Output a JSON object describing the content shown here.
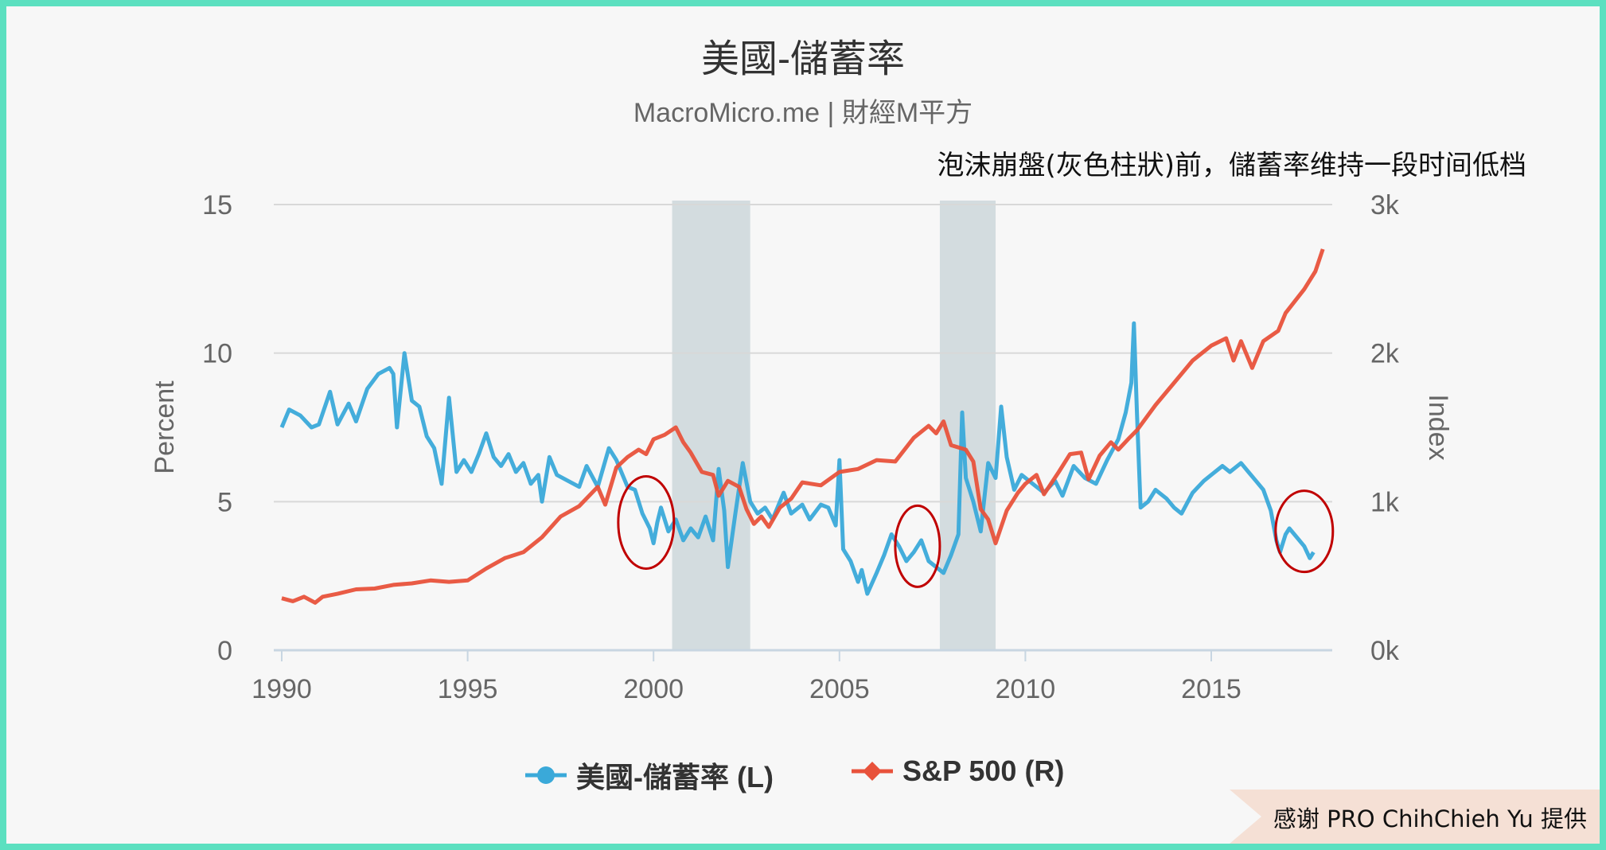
{
  "chart_data": {
    "type": "line",
    "title": "美國-儲蓄率",
    "subtitle": "MacroMicro.me | 財經M平方",
    "annotation": "泡沫崩盤(灰色柱狀)前，儲蓄率维持一段时间低档",
    "credit": "感谢 PRO ChihChieh Yu  提供",
    "xlim": [
      1989.9,
      2018.4
    ],
    "x_ticks": [
      1990,
      1995,
      2000,
      2005,
      2010,
      2015
    ],
    "x_tick_labels": [
      "1990",
      "1995",
      "2000",
      "2005",
      "2010",
      "2015"
    ],
    "left_axis": {
      "label": "Percent",
      "ylim": [
        0,
        15
      ],
      "ticks": [
        0,
        5,
        10,
        15
      ],
      "tick_labels": [
        "0",
        "5",
        "10",
        "15"
      ]
    },
    "right_axis": {
      "label": "Index",
      "ylim": [
        0,
        3000
      ],
      "ticks": [
        0,
        1000,
        2000,
        3000
      ],
      "tick_labels": [
        "0k",
        "1k",
        "2k",
        "3k"
      ]
    },
    "grid": true,
    "legend_placement": "bottom",
    "shaded_periods": [
      [
        2000.5,
        2002.6
      ],
      [
        2007.7,
        2009.2
      ]
    ],
    "shade_color": "#d3dcdf",
    "highlight_circles": [
      {
        "x": 1999.8,
        "y": 4.3
      },
      {
        "x": 2007.1,
        "y": 3.5
      },
      {
        "x": 2017.5,
        "y": 4.0
      }
    ],
    "circle_color": "#c00000",
    "series": [
      {
        "name": "美國-儲蓄率 (L)",
        "axis": "left",
        "color": "#3aa9d9",
        "points": [
          [
            1990.0,
            7.5
          ],
          [
            1990.2,
            8.1
          ],
          [
            1990.5,
            7.9
          ],
          [
            1990.8,
            7.5
          ],
          [
            1991.0,
            7.6
          ],
          [
            1991.3,
            8.7
          ],
          [
            1991.5,
            7.6
          ],
          [
            1991.8,
            8.3
          ],
          [
            1992.0,
            7.7
          ],
          [
            1992.3,
            8.8
          ],
          [
            1992.6,
            9.3
          ],
          [
            1992.9,
            9.5
          ],
          [
            1993.0,
            9.3
          ],
          [
            1993.1,
            7.5
          ],
          [
            1993.3,
            10.0
          ],
          [
            1993.5,
            8.4
          ],
          [
            1993.7,
            8.2
          ],
          [
            1993.9,
            7.2
          ],
          [
            1994.1,
            6.8
          ],
          [
            1994.3,
            5.6
          ],
          [
            1994.5,
            8.5
          ],
          [
            1994.7,
            6.0
          ],
          [
            1994.9,
            6.4
          ],
          [
            1995.1,
            6.0
          ],
          [
            1995.3,
            6.6
          ],
          [
            1995.5,
            7.3
          ],
          [
            1995.7,
            6.5
          ],
          [
            1995.9,
            6.2
          ],
          [
            1996.1,
            6.6
          ],
          [
            1996.3,
            6.0
          ],
          [
            1996.5,
            6.3
          ],
          [
            1996.7,
            5.6
          ],
          [
            1996.9,
            5.9
          ],
          [
            1997.0,
            5.0
          ],
          [
            1997.2,
            6.5
          ],
          [
            1997.4,
            5.9
          ],
          [
            1997.7,
            5.7
          ],
          [
            1998.0,
            5.5
          ],
          [
            1998.2,
            6.2
          ],
          [
            1998.5,
            5.5
          ],
          [
            1998.8,
            6.8
          ],
          [
            1999.0,
            6.4
          ],
          [
            1999.3,
            5.5
          ],
          [
            1999.5,
            5.4
          ],
          [
            1999.7,
            4.6
          ],
          [
            1999.9,
            4.1
          ],
          [
            2000.0,
            3.6
          ],
          [
            2000.1,
            4.3
          ],
          [
            2000.2,
            4.8
          ],
          [
            2000.4,
            4.0
          ],
          [
            2000.6,
            4.4
          ],
          [
            2000.8,
            3.7
          ],
          [
            2001.0,
            4.1
          ],
          [
            2001.2,
            3.8
          ],
          [
            2001.4,
            4.5
          ],
          [
            2001.6,
            3.7
          ],
          [
            2001.75,
            6.1
          ],
          [
            2001.9,
            4.7
          ],
          [
            2002.0,
            2.8
          ],
          [
            2002.2,
            4.6
          ],
          [
            2002.4,
            6.3
          ],
          [
            2002.6,
            5.0
          ],
          [
            2002.8,
            4.6
          ],
          [
            2003.0,
            4.8
          ],
          [
            2003.2,
            4.4
          ],
          [
            2003.5,
            5.3
          ],
          [
            2003.7,
            4.6
          ],
          [
            2004.0,
            4.9
          ],
          [
            2004.2,
            4.4
          ],
          [
            2004.5,
            4.9
          ],
          [
            2004.7,
            4.8
          ],
          [
            2004.9,
            4.2
          ],
          [
            2005.0,
            6.4
          ],
          [
            2005.1,
            3.4
          ],
          [
            2005.3,
            3.0
          ],
          [
            2005.5,
            2.3
          ],
          [
            2005.6,
            2.7
          ],
          [
            2005.75,
            1.9
          ],
          [
            2006.0,
            2.6
          ],
          [
            2006.2,
            3.2
          ],
          [
            2006.4,
            3.9
          ],
          [
            2006.6,
            3.5
          ],
          [
            2006.8,
            3.0
          ],
          [
            2007.0,
            3.3
          ],
          [
            2007.2,
            3.7
          ],
          [
            2007.4,
            3.0
          ],
          [
            2007.6,
            2.8
          ],
          [
            2007.8,
            2.6
          ],
          [
            2008.0,
            3.2
          ],
          [
            2008.2,
            3.9
          ],
          [
            2008.3,
            8.0
          ],
          [
            2008.4,
            5.8
          ],
          [
            2008.6,
            5.0
          ],
          [
            2008.8,
            4.0
          ],
          [
            2009.0,
            6.3
          ],
          [
            2009.2,
            5.8
          ],
          [
            2009.35,
            8.2
          ],
          [
            2009.5,
            6.5
          ],
          [
            2009.7,
            5.4
          ],
          [
            2009.9,
            5.9
          ],
          [
            2010.2,
            5.6
          ],
          [
            2010.5,
            5.3
          ],
          [
            2010.8,
            5.7
          ],
          [
            2011.0,
            5.2
          ],
          [
            2011.3,
            6.2
          ],
          [
            2011.6,
            5.8
          ],
          [
            2011.9,
            5.6
          ],
          [
            2012.2,
            6.4
          ],
          [
            2012.5,
            7.1
          ],
          [
            2012.7,
            8.0
          ],
          [
            2012.85,
            9.0
          ],
          [
            2012.92,
            11.0
          ],
          [
            2013.0,
            8.0
          ],
          [
            2013.1,
            4.8
          ],
          [
            2013.3,
            5.0
          ],
          [
            2013.5,
            5.4
          ],
          [
            2013.8,
            5.1
          ],
          [
            2014.0,
            4.8
          ],
          [
            2014.2,
            4.6
          ],
          [
            2014.5,
            5.3
          ],
          [
            2014.8,
            5.7
          ],
          [
            2015.0,
            5.9
          ],
          [
            2015.3,
            6.2
          ],
          [
            2015.5,
            6.0
          ],
          [
            2015.8,
            6.3
          ],
          [
            2016.0,
            6.0
          ],
          [
            2016.2,
            5.7
          ],
          [
            2016.4,
            5.4
          ],
          [
            2016.6,
            4.7
          ],
          [
            2016.75,
            3.7
          ],
          [
            2016.85,
            3.3
          ],
          [
            2017.0,
            3.9
          ],
          [
            2017.1,
            4.1
          ],
          [
            2017.3,
            3.8
          ],
          [
            2017.5,
            3.5
          ],
          [
            2017.65,
            3.1
          ],
          [
            2017.75,
            3.3
          ]
        ]
      },
      {
        "name": "S&P 500 (R)",
        "axis": "right",
        "color": "#e8523b",
        "points": [
          [
            1990.0,
            350
          ],
          [
            1990.3,
            330
          ],
          [
            1990.6,
            360
          ],
          [
            1990.9,
            320
          ],
          [
            1991.1,
            360
          ],
          [
            1991.5,
            380
          ],
          [
            1992.0,
            410
          ],
          [
            1992.5,
            415
          ],
          [
            1993.0,
            440
          ],
          [
            1993.5,
            450
          ],
          [
            1994.0,
            470
          ],
          [
            1994.5,
            460
          ],
          [
            1995.0,
            470
          ],
          [
            1995.5,
            550
          ],
          [
            1996.0,
            620
          ],
          [
            1996.5,
            660
          ],
          [
            1997.0,
            760
          ],
          [
            1997.5,
            900
          ],
          [
            1998.0,
            970
          ],
          [
            1998.5,
            1100
          ],
          [
            1998.7,
            980
          ],
          [
            1999.0,
            1230
          ],
          [
            1999.3,
            1300
          ],
          [
            1999.6,
            1350
          ],
          [
            1999.8,
            1320
          ],
          [
            2000.0,
            1420
          ],
          [
            2000.3,
            1450
          ],
          [
            2000.6,
            1500
          ],
          [
            2000.8,
            1400
          ],
          [
            2001.0,
            1330
          ],
          [
            2001.3,
            1200
          ],
          [
            2001.6,
            1180
          ],
          [
            2001.75,
            1040
          ],
          [
            2002.0,
            1140
          ],
          [
            2002.3,
            1100
          ],
          [
            2002.5,
            950
          ],
          [
            2002.7,
            850
          ],
          [
            2002.9,
            900
          ],
          [
            2003.1,
            830
          ],
          [
            2003.4,
            960
          ],
          [
            2003.7,
            1020
          ],
          [
            2004.0,
            1130
          ],
          [
            2004.5,
            1110
          ],
          [
            2005.0,
            1200
          ],
          [
            2005.5,
            1220
          ],
          [
            2006.0,
            1280
          ],
          [
            2006.5,
            1270
          ],
          [
            2007.0,
            1430
          ],
          [
            2007.4,
            1510
          ],
          [
            2007.6,
            1460
          ],
          [
            2007.8,
            1540
          ],
          [
            2008.0,
            1380
          ],
          [
            2008.4,
            1350
          ],
          [
            2008.6,
            1270
          ],
          [
            2008.8,
            950
          ],
          [
            2009.0,
            880
          ],
          [
            2009.2,
            720
          ],
          [
            2009.5,
            940
          ],
          [
            2009.8,
            1060
          ],
          [
            2010.0,
            1120
          ],
          [
            2010.3,
            1180
          ],
          [
            2010.5,
            1050
          ],
          [
            2010.9,
            1200
          ],
          [
            2011.2,
            1320
          ],
          [
            2011.5,
            1330
          ],
          [
            2011.7,
            1150
          ],
          [
            2012.0,
            1310
          ],
          [
            2012.3,
            1400
          ],
          [
            2012.5,
            1350
          ],
          [
            2012.8,
            1430
          ],
          [
            2013.0,
            1480
          ],
          [
            2013.5,
            1650
          ],
          [
            2014.0,
            1800
          ],
          [
            2014.5,
            1950
          ],
          [
            2015.0,
            2050
          ],
          [
            2015.4,
            2100
          ],
          [
            2015.6,
            1950
          ],
          [
            2015.8,
            2080
          ],
          [
            2016.1,
            1900
          ],
          [
            2016.4,
            2080
          ],
          [
            2016.8,
            2150
          ],
          [
            2017.0,
            2270
          ],
          [
            2017.5,
            2430
          ],
          [
            2017.8,
            2550
          ],
          [
            2018.0,
            2700
          ]
        ]
      }
    ]
  }
}
